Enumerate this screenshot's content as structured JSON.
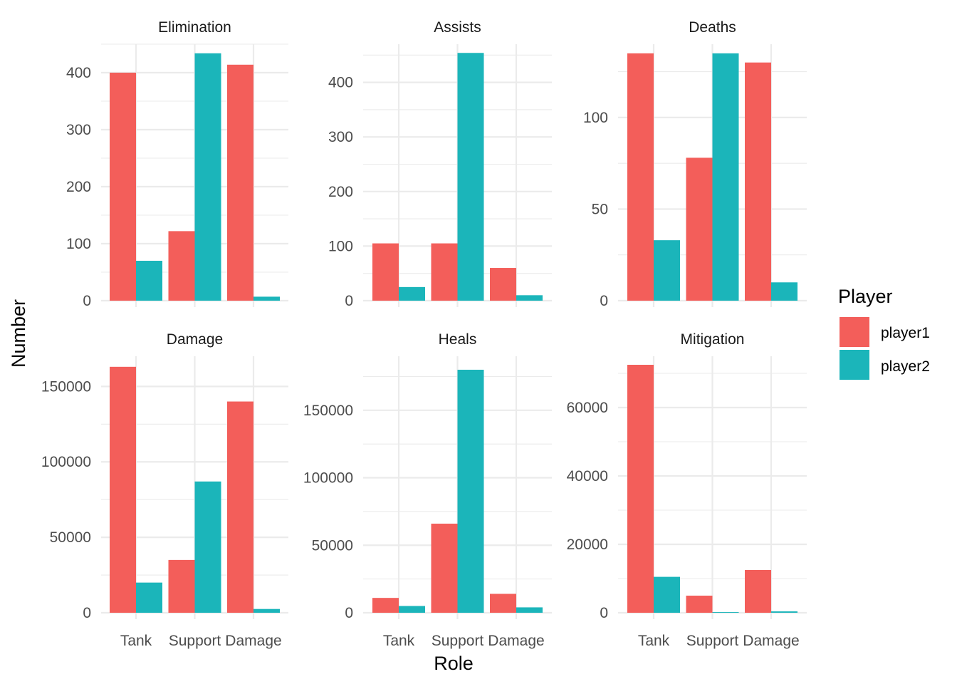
{
  "chart_data": {
    "type": "bar",
    "layout": "facet_wrap",
    "xlabel": "Role",
    "ylabel": "Number",
    "categories": [
      "Tank",
      "Support",
      "Damage"
    ],
    "legend": {
      "title": "Player",
      "position": "right",
      "entries": [
        {
          "name": "player1",
          "color": "#F8766D"
        },
        {
          "name": "player2",
          "color": "#00BFC4"
        }
      ]
    },
    "colors": {
      "player1": "#F35E5A",
      "player2": "#1BB5BA"
    },
    "grid": true,
    "panels": [
      {
        "title": "Elimination",
        "ylim": [
          0,
          450
        ],
        "yticks": [
          0,
          100,
          200,
          300,
          400
        ],
        "ytick_labels": [
          "0",
          "100",
          "200",
          "300",
          "400"
        ],
        "series": [
          {
            "name": "player1",
            "values": [
              400,
              122,
              414
            ]
          },
          {
            "name": "player2",
            "values": [
              70,
              434,
              7
            ]
          }
        ]
      },
      {
        "title": "Assists",
        "ylim": [
          0,
          470
        ],
        "yticks": [
          0,
          100,
          200,
          300,
          400
        ],
        "ytick_labels": [
          "0",
          "100",
          "200",
          "300",
          "400"
        ],
        "series": [
          {
            "name": "player1",
            "values": [
              105,
              105,
              60
            ]
          },
          {
            "name": "player2",
            "values": [
              25,
              454,
              10
            ]
          }
        ]
      },
      {
        "title": "Deaths",
        "ylim": [
          0,
          140
        ],
        "yticks": [
          0,
          50,
          100
        ],
        "ytick_labels": [
          "0",
          "50",
          "100"
        ],
        "series": [
          {
            "name": "player1",
            "values": [
              135,
              78,
              130
            ]
          },
          {
            "name": "player2",
            "values": [
              33,
              135,
              10
            ]
          }
        ]
      },
      {
        "title": "Damage",
        "ylim": [
          0,
          170000
        ],
        "yticks": [
          0,
          50000,
          100000,
          150000
        ],
        "ytick_labels": [
          "0",
          "50000",
          "100000",
          "150000"
        ],
        "series": [
          {
            "name": "player1",
            "values": [
              163000,
              35000,
              140000
            ]
          },
          {
            "name": "player2",
            "values": [
              20000,
              87000,
              2500
            ]
          }
        ]
      },
      {
        "title": "Heals",
        "ylim": [
          0,
          190000
        ],
        "yticks": [
          0,
          50000,
          100000,
          150000
        ],
        "ytick_labels": [
          "0",
          "50000",
          "100000",
          "150000"
        ],
        "series": [
          {
            "name": "player1",
            "values": [
              11000,
              66000,
              14000
            ]
          },
          {
            "name": "player2",
            "values": [
              5000,
              180000,
              4000
            ]
          }
        ]
      },
      {
        "title": "Mitigation",
        "ylim": [
          0,
          75000
        ],
        "yticks": [
          0,
          20000,
          40000,
          60000
        ],
        "ytick_labels": [
          "0",
          "20000",
          "40000",
          "60000"
        ],
        "series": [
          {
            "name": "player1",
            "values": [
              72500,
              5000,
              12500
            ]
          },
          {
            "name": "player2",
            "values": [
              10500,
              200,
              400
            ]
          }
        ]
      }
    ]
  }
}
